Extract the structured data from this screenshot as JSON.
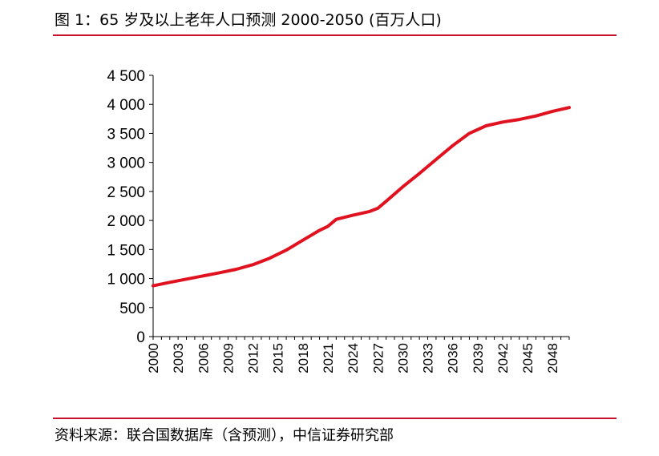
{
  "header": {
    "title": "图 1：65 岁及以上老年人口预测 2000-2050 (百万人口)"
  },
  "footer": {
    "source": "资料来源：联合国数据库（含预测），中信证券研究部"
  },
  "chart_data": {
    "type": "line",
    "title": "图 1：65 岁及以上老年人口预测 2000-2050 (百万人口)",
    "xlabel": "",
    "ylabel": "",
    "ylim": [
      0,
      4500
    ],
    "yticks": [
      0,
      500,
      1000,
      1500,
      2000,
      2500,
      3000,
      3500,
      4000,
      4500
    ],
    "ytick_labels": [
      "0",
      "500",
      "1 000",
      "1 500",
      "2 000",
      "2 500",
      "3 000",
      "3 500",
      "4 000",
      "4 500"
    ],
    "xlim": [
      2000,
      2050
    ],
    "xticks": [
      "2000",
      "2003",
      "2006",
      "2009",
      "2012",
      "2015",
      "2018",
      "2021",
      "2024",
      "2027",
      "2030",
      "2033",
      "2036",
      "2039",
      "2042",
      "2045",
      "2048"
    ],
    "grid": false,
    "legend": "none",
    "series": [
      {
        "color": "#e0121f",
        "x": [
          2000,
          2002,
          2004,
          2006,
          2008,
          2010,
          2012,
          2014,
          2016,
          2018,
          2020,
          2021,
          2022,
          2024,
          2026,
          2027,
          2028,
          2030,
          2032,
          2034,
          2036,
          2038,
          2040,
          2042,
          2044,
          2046,
          2048,
          2050
        ],
        "y": [
          875,
          935,
          990,
          1045,
          1100,
          1160,
          1240,
          1350,
          1490,
          1660,
          1830,
          1900,
          2020,
          2090,
          2155,
          2210,
          2330,
          2580,
          2810,
          3050,
          3290,
          3500,
          3630,
          3695,
          3740,
          3800,
          3880,
          3945
        ]
      }
    ]
  }
}
